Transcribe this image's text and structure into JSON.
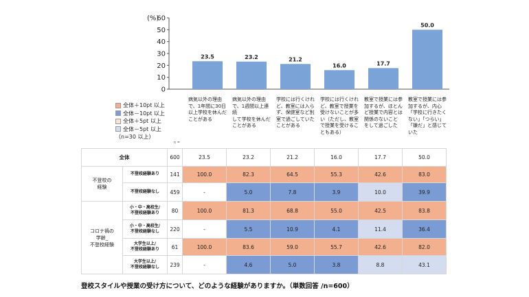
{
  "chart_data": {
    "type": "bar",
    "categories": [
      "病気以外の理由で、1年間に30日以上学校を休んだことがある",
      "病気以外の理由で、1週間以上連続して学校を休んだことがある",
      "学校には行くけれど、教室には入らず、保健室など別室で過ごしていたことがある",
      "学校には行くけれど、教室で授業を受けないことが多い（ただし、教室で授業を受けることもある）",
      "教室で授業には参加するが、ほとんど授業で内容とは関係のないことをして過ごした",
      "教室で授業には参加するが、内心「学校に行きたくない」「つらい」「嫌だ」と感じていた"
    ],
    "values": [
      23.5,
      23.2,
      21.2,
      16.0,
      17.7,
      50.0
    ],
    "value_labels": [
      "23.5",
      "23.2",
      "21.2",
      "16.0",
      "17.7",
      "50.0"
    ],
    "ylim": [
      0,
      60
    ],
    "yticks": [
      0,
      10,
      20,
      30,
      40,
      50,
      60
    ],
    "ytick_labels": [
      "0",
      "10",
      "20",
      "30",
      "40",
      "50",
      "60"
    ],
    "ylabel": "(%)",
    "bar_color": "#7aa3d8",
    "grid": false
  },
  "legend": [
    {
      "label": "全体＋10pt 以上",
      "color": "#f2b08e"
    },
    {
      "label": "全体－10pt 以上",
      "color": "#7a9bd3"
    },
    {
      "label": "全体＋5pt 以上",
      "color": "#fbe2d2"
    },
    {
      "label": "全体－5pt 以上",
      "color": "#d4dcef"
    }
  ],
  "legend_note": "（n=30 以上）",
  "n_header": "n =",
  "column_headers": [
    [
      "病気以外の理由",
      "で、1年間に30日",
      "以上学校を休んだ",
      "ことがある"
    ],
    [
      "病気以外の理由",
      "で、1週間以上連続",
      "して学校を休んだ",
      "ことがある"
    ],
    [
      "学校には行くけれ",
      "ど、教室には入ら",
      "ず、保健室など別",
      "室で過ごしていた",
      "ことがある"
    ],
    [
      "学校には行くけれ",
      "ど、教室で授業を",
      "受けないことが多",
      "い（ただし、教室",
      "で授業を受けるこ",
      "ともある）"
    ],
    [
      "教室で授業には参",
      "加するが、ほとん",
      "ど授業で内容とは",
      "関係のないこと",
      "をして過ごした"
    ],
    [
      "教室で授業には参",
      "加するが、内心",
      "「学校に行きたく",
      "ない」「つらい」",
      "「嫌だ」と感じて",
      "いた"
    ]
  ],
  "table": {
    "total_label": "全体",
    "total_n": "600",
    "total_values": [
      "23.5",
      "23.2",
      "21.2",
      "16.0",
      "17.7",
      "50.0"
    ],
    "groups": [
      {
        "label": [
          "不登校の",
          "経験"
        ],
        "rows": [
          {
            "label": [
              "不登校経験あり"
            ],
            "n": "141",
            "values": [
              "100.0",
              "82.3",
              "64.5",
              "55.3",
              "42.6",
              "83.0"
            ],
            "colors": [
              "or",
              "or",
              "or",
              "or",
              "or",
              "or"
            ]
          },
          {
            "label": [
              "不登校経験なし"
            ],
            "n": "459",
            "values": [
              "-",
              "5.0",
              "7.8",
              "3.9",
              "10.0",
              "39.9"
            ],
            "colors": [
              "",
              "bl",
              "bl",
              "bl",
              "lb",
              "bl"
            ]
          }
        ]
      },
      {
        "label": [
          "コロナ禍の",
          "学齢_",
          "不登校経験"
        ],
        "rows": [
          {
            "label": [
              "小・中・高校生/",
              "不登校経験あり"
            ],
            "n": "80",
            "values": [
              "100.0",
              "81.3",
              "68.8",
              "55.0",
              "42.5",
              "83.8"
            ],
            "colors": [
              "or",
              "or",
              "or",
              "or",
              "or",
              "or"
            ]
          },
          {
            "label": [
              "小・中・高校生/",
              "不登校経験なし"
            ],
            "n": "220",
            "values": [
              "-",
              "5.5",
              "10.9",
              "4.1",
              "11.4",
              "36.4"
            ],
            "colors": [
              "",
              "bl",
              "bl",
              "bl",
              "lb",
              "bl"
            ]
          },
          {
            "label": [
              "大学生以上/",
              "不登校経験あり"
            ],
            "n": "61",
            "values": [
              "100.0",
              "83.6",
              "59.0",
              "55.7",
              "42.6",
              "82.0"
            ],
            "colors": [
              "or",
              "or",
              "or",
              "or",
              "or",
              "or"
            ]
          },
          {
            "label": [
              "大学生以上/",
              "不登校経験なし"
            ],
            "n": "239",
            "values": [
              "-",
              "4.6",
              "5.0",
              "3.8",
              "8.8",
              "43.1"
            ],
            "colors": [
              "",
              "bl",
              "bl",
              "bl",
              "lb",
              "lb"
            ]
          }
        ]
      }
    ]
  },
  "footer": "登校スタイルや授業の受け方について、どのような経験がありますか。（単数回答 /n=600）"
}
